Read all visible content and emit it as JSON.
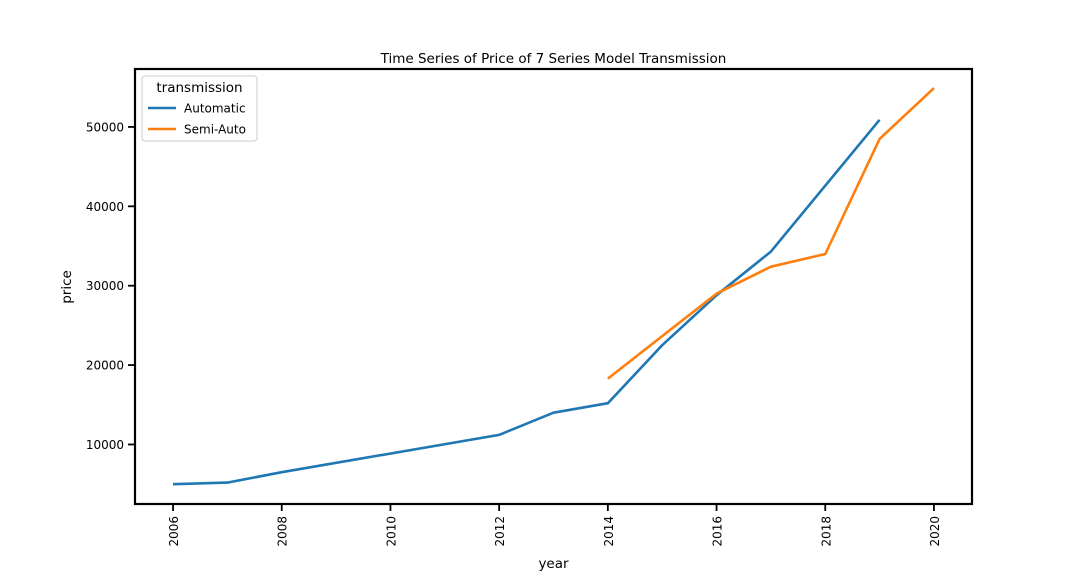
{
  "chart_data": {
    "type": "line",
    "title": "Time Series of Price of 7 Series Model Transmission",
    "xlabel": "year",
    "ylabel": "price",
    "xlim": [
      2005.3,
      2020.7
    ],
    "ylim": [
      2500,
      57300
    ],
    "xticks": [
      2006,
      2008,
      2010,
      2012,
      2014,
      2016,
      2018,
      2020
    ],
    "yticks": [
      10000,
      20000,
      30000,
      40000,
      50000
    ],
    "grid": false,
    "legend": {
      "title": "transmission",
      "position": "top-left"
    },
    "series": [
      {
        "name": "Automatic",
        "color": "#1f77b4",
        "x": [
          2006,
          2007,
          2008,
          2012,
          2013,
          2014,
          2015,
          2016,
          2017,
          2019
        ],
        "y": [
          5000,
          5200,
          6500,
          11200,
          14000,
          15200,
          22500,
          28800,
          34300,
          50900
        ]
      },
      {
        "name": "Semi-Auto",
        "color": "#ff7f0e",
        "x": [
          2014,
          2016,
          2017,
          2018,
          2019,
          2020
        ],
        "y": [
          18300,
          29000,
          32400,
          34000,
          48500,
          54900
        ]
      }
    ]
  }
}
